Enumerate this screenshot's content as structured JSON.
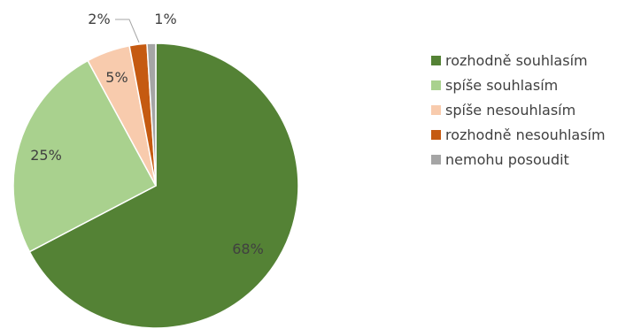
{
  "chart_data": {
    "type": "pie",
    "start": "top",
    "direction": "clockwise",
    "legend_position": "right",
    "slices": [
      {
        "label": "rozhodně souhlasím",
        "value": 68,
        "display": "68%",
        "color": "#548235"
      },
      {
        "label": "spíše souhlasím",
        "value": 25,
        "display": "25%",
        "color": "#a9d18e"
      },
      {
        "label": "spíše nesouhlasím",
        "value": 5,
        "display": "5%",
        "color": "#f8cbad"
      },
      {
        "label": "rozhodně nesouhlasím",
        "value": 2,
        "display": "2%",
        "color": "#c55a11"
      },
      {
        "label": "nemohu posoudit",
        "value": 1,
        "display": "1%",
        "color": "#a5a5a5"
      }
    ]
  }
}
